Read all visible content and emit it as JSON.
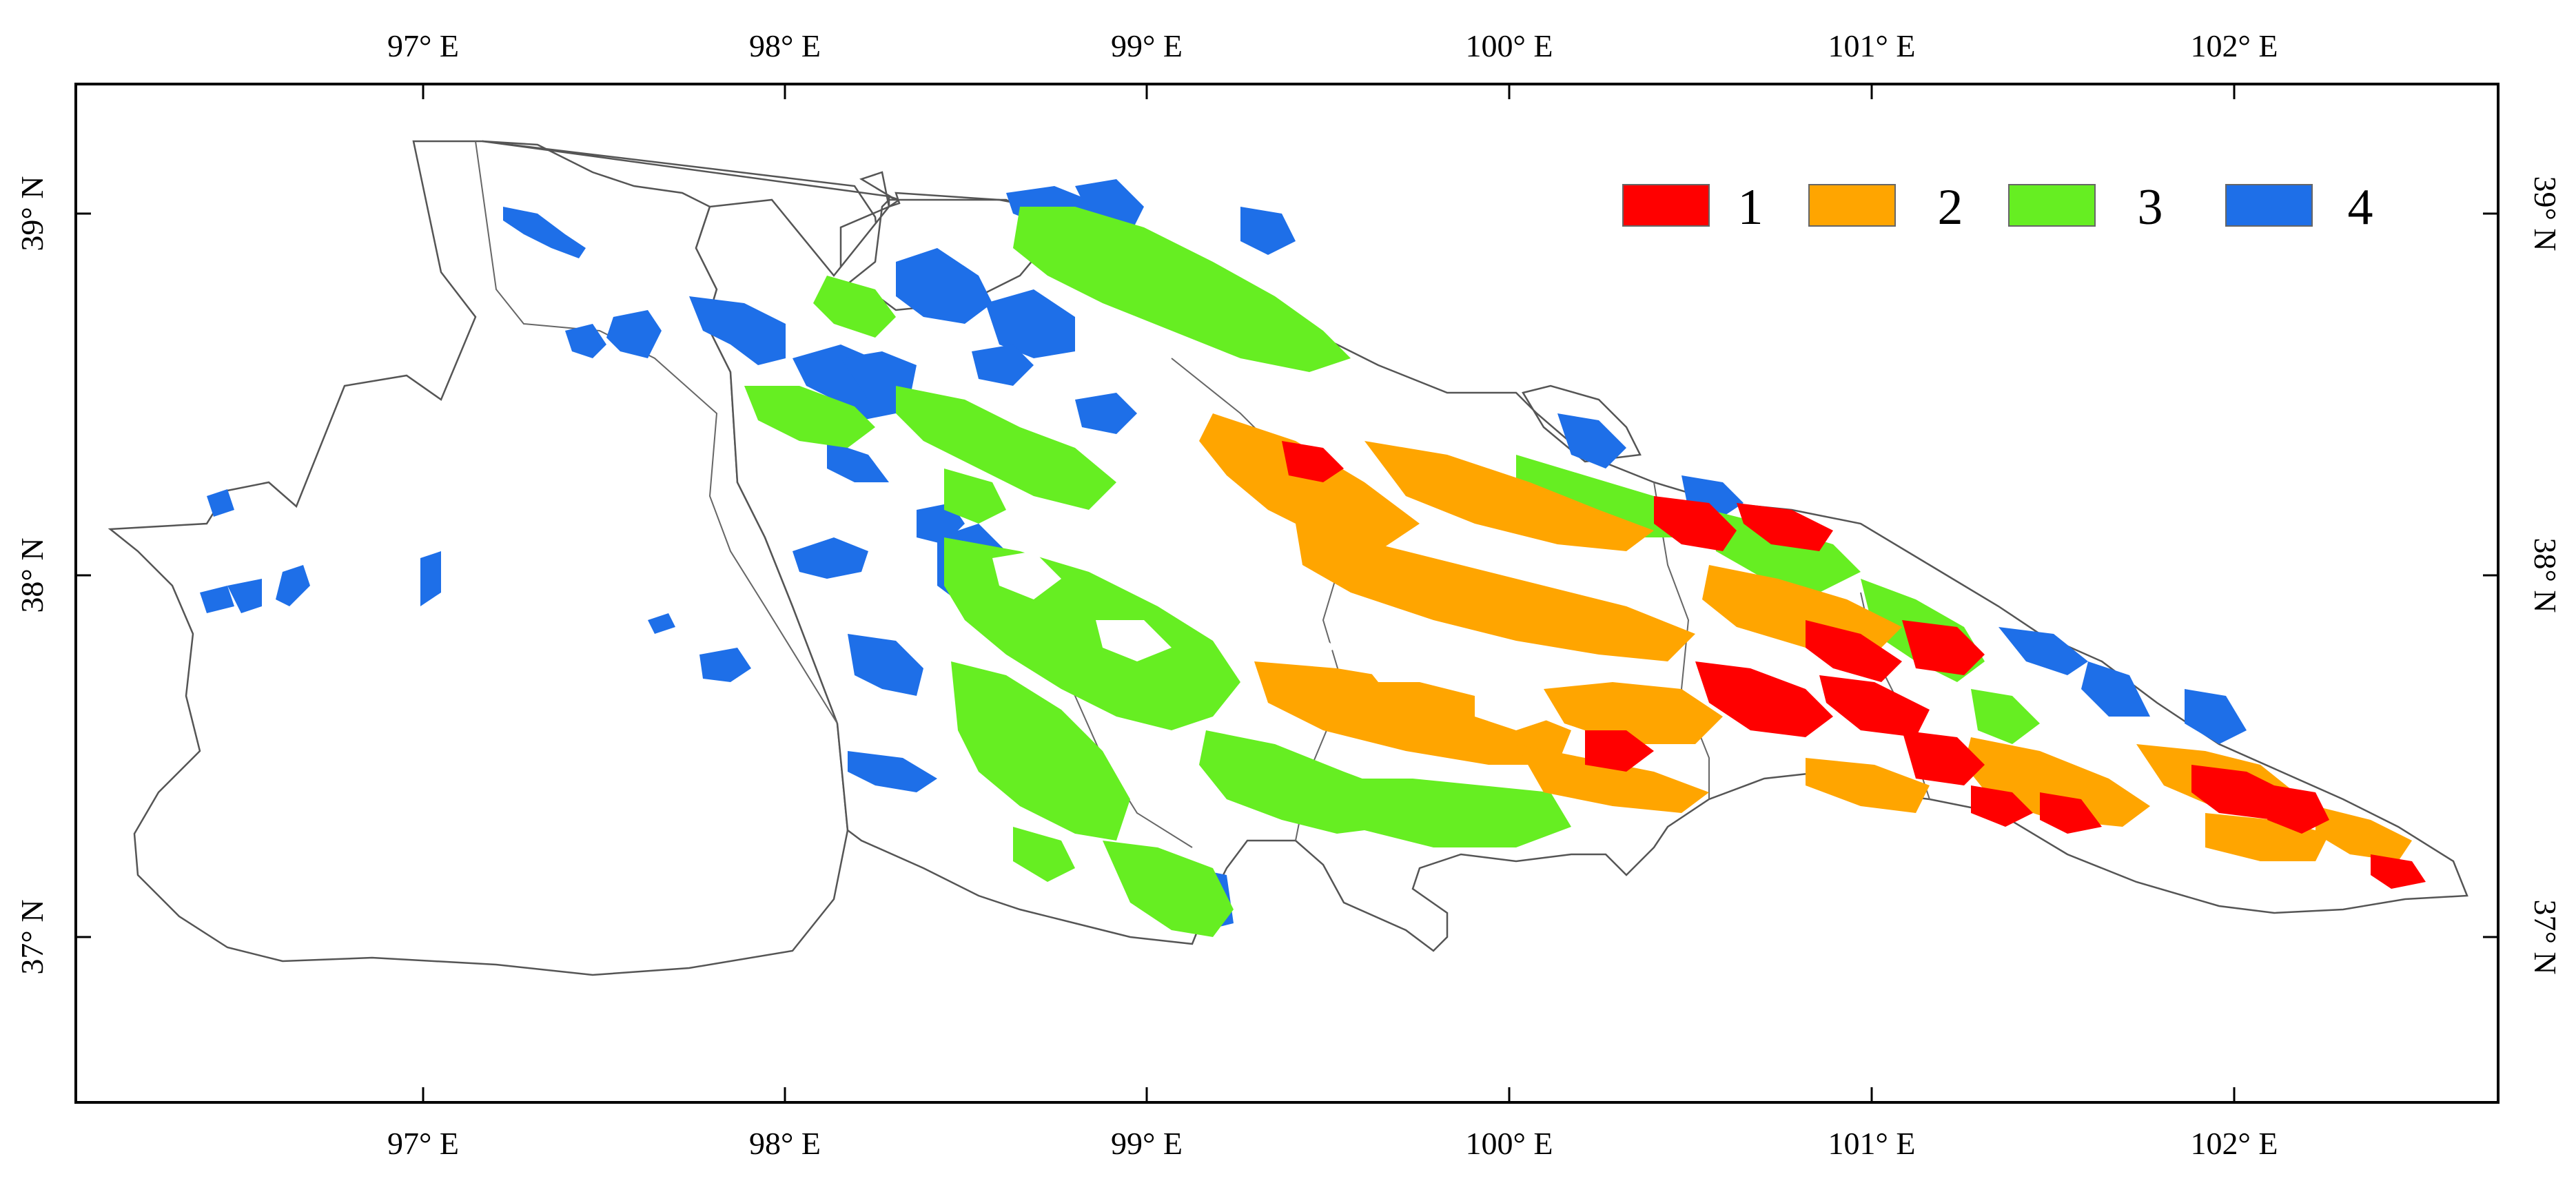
{
  "map": {
    "longitude_ticks": [
      "97° E",
      "98° E",
      "99° E",
      "100° E",
      "101° E",
      "102° E"
    ],
    "latitude_ticks": [
      "39° N",
      "38° N",
      "37° N"
    ],
    "legend": [
      {
        "label": "1",
        "color": "#ff0000"
      },
      {
        "label": "2",
        "color": "#ffa500"
      },
      {
        "label": "3",
        "color": "#66ee22"
      },
      {
        "label": "4",
        "color": "#1e6fe8"
      }
    ],
    "boundary_color": "#555555",
    "frame_color": "#000000"
  }
}
